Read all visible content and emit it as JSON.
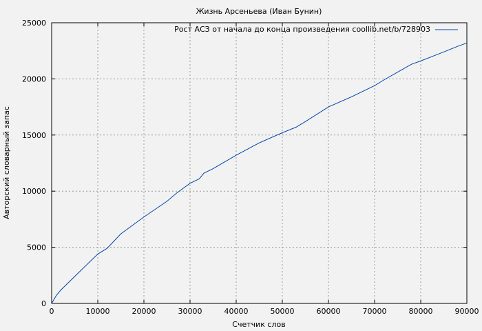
{
  "chart_data": {
    "type": "line",
    "title": "Жизнь Арсеньева (Иван Бунин)",
    "xlabel": "Счетчик слов",
    "ylabel": "Авторский словарный запас",
    "xlim": [
      0,
      90000
    ],
    "ylim": [
      0,
      25000
    ],
    "xticks": [
      0,
      10000,
      20000,
      30000,
      40000,
      50000,
      60000,
      70000,
      80000,
      90000
    ],
    "yticks": [
      0,
      5000,
      10000,
      15000,
      20000,
      25000
    ],
    "grid": true,
    "legend_position": "top-right",
    "series": [
      {
        "name": "Рост АСЗ от начала до конца произведения coollib.net/b/728903",
        "color": "#0044aa",
        "x": [
          0,
          1000,
          2000,
          5000,
          8000,
          10000,
          12000,
          15000,
          20000,
          25000,
          27000,
          30000,
          32000,
          33000,
          35000,
          40000,
          45000,
          50000,
          53000,
          55000,
          60000,
          65000,
          70000,
          72000,
          75000,
          78000,
          80000,
          85000,
          88000,
          90000
        ],
        "y": [
          0,
          700,
          1200,
          2400,
          3600,
          4400,
          4900,
          6200,
          7700,
          9100,
          9800,
          10700,
          11100,
          11600,
          12000,
          13200,
          14300,
          15200,
          15700,
          16200,
          17500,
          18400,
          19400,
          19900,
          20600,
          21300,
          21600,
          22400,
          22900,
          23200
        ]
      }
    ]
  }
}
